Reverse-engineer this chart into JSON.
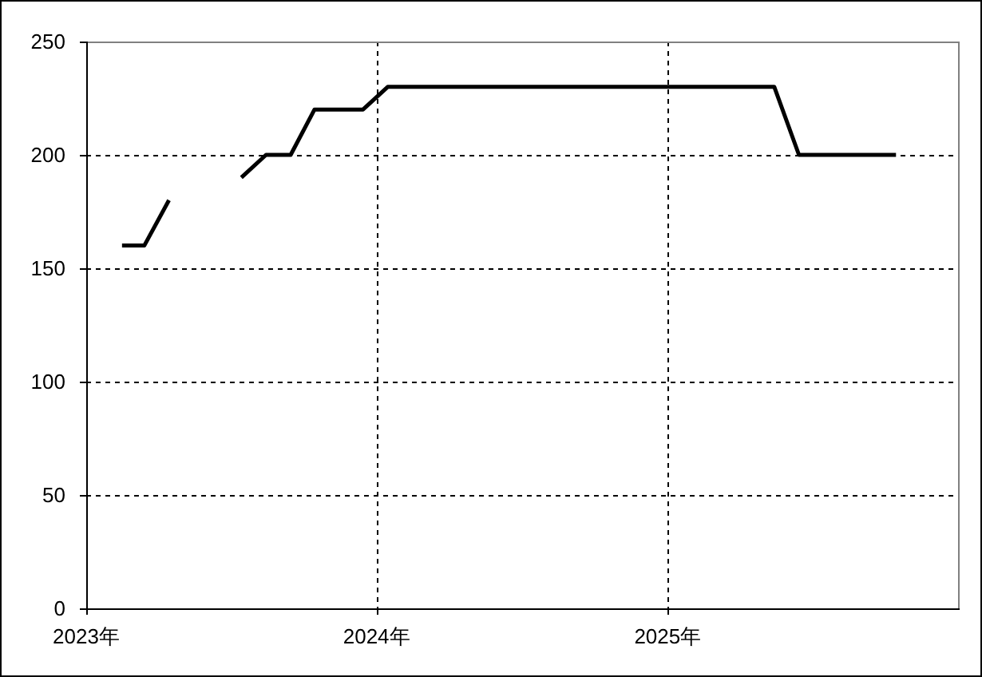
{
  "chart_data": {
    "type": "line",
    "x": [
      "2023-02-15",
      "2023-03-15",
      "2023-04-15",
      "2023-05-15",
      "2023-06-15",
      "2023-07-15",
      "2023-08-15",
      "2023-09-15",
      "2023-10-15",
      "2023-11-15",
      "2023-12-15",
      "2024-01-15",
      "2024-02-15",
      "2024-03-15",
      "2024-04-15",
      "2024-05-15",
      "2024-06-15",
      "2024-07-15",
      "2024-08-15",
      "2024-09-15",
      "2024-10-15",
      "2024-11-15",
      "2024-12-15",
      "2025-01-15",
      "2025-02-15",
      "2025-03-15",
      "2025-04-15",
      "2025-05-15",
      "2025-06-15",
      "2025-07-15",
      "2025-08-15",
      "2025-09-15",
      "2025-10-15"
    ],
    "values": [
      160,
      160,
      180,
      null,
      null,
      190,
      200,
      200,
      220,
      220,
      220,
      230,
      230,
      230,
      230,
      230,
      230,
      230,
      230,
      230,
      230,
      230,
      230,
      230,
      230,
      230,
      230,
      230,
      200,
      200,
      200,
      200,
      200
    ],
    "color": "#000000",
    "xlim": [
      "2023-01-01",
      "2026-01-01"
    ],
    "xticks": [
      {
        "value": "2023-01-01",
        "label": "2023年"
      },
      {
        "value": "2024-01-01",
        "label": "2024年"
      },
      {
        "value": "2025-01-01",
        "label": "2025年"
      }
    ],
    "ylim": [
      0,
      250
    ],
    "yticks": [
      0,
      50,
      100,
      150,
      200,
      250
    ],
    "grid": true
  }
}
